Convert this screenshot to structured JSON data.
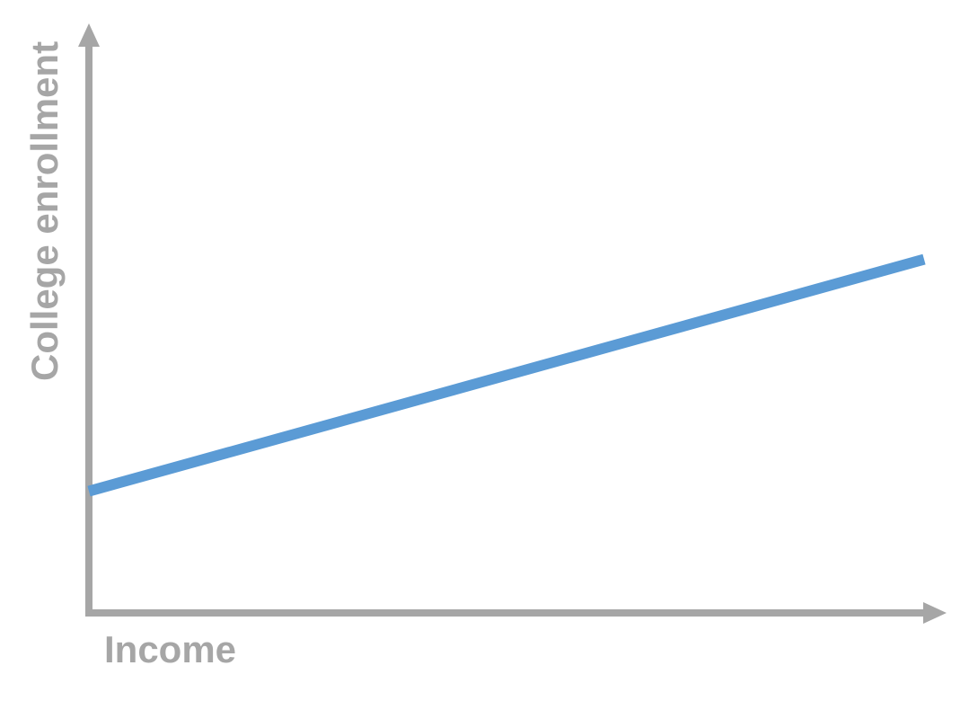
{
  "chart_data": {
    "type": "line",
    "title": "",
    "xlabel": "Income",
    "ylabel": "College enrollment",
    "grid": false,
    "legend": "none",
    "x_ticks": [],
    "y_ticks": [],
    "series": [
      {
        "x": [
          0,
          1
        ],
        "y": [
          0.21,
          0.61
        ]
      }
    ],
    "xlim": [
      0,
      1
    ],
    "ylim": [
      0,
      1
    ],
    "colors": {
      "axis": "#a6a6a6",
      "line": "#5b9bd5",
      "label": "#a6a6a6"
    }
  }
}
